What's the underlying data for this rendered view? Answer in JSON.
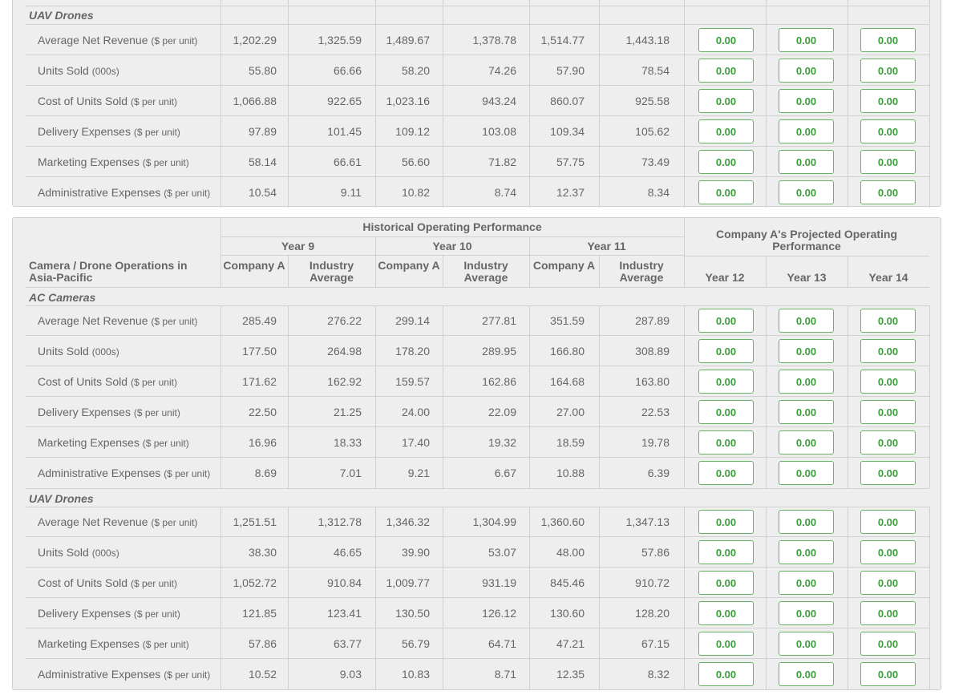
{
  "top_section": {
    "label": "UAV Drones",
    "rows": [
      {
        "label": "Average Net Revenue",
        "unit": "($ per unit)",
        "values": [
          "1,202.29",
          "1,325.59",
          "1,489.67",
          "1,378.78",
          "1,514.77",
          "1,443.18"
        ],
        "projected": [
          "0.00",
          "0.00",
          "0.00"
        ]
      },
      {
        "label": "Units Sold",
        "unit": "(000s)",
        "values": [
          "55.80",
          "66.66",
          "58.20",
          "74.26",
          "57.90",
          "78.54"
        ],
        "projected": [
          "0.00",
          "0.00",
          "0.00"
        ]
      },
      {
        "label": "Cost of Units Sold",
        "unit": "($ per unit)",
        "values": [
          "1,066.88",
          "922.65",
          "1,023.16",
          "943.24",
          "860.07",
          "925.58"
        ],
        "projected": [
          "0.00",
          "0.00",
          "0.00"
        ]
      },
      {
        "label": "Delivery Expenses",
        "unit": "($ per unit)",
        "values": [
          "97.89",
          "101.45",
          "109.12",
          "103.08",
          "109.34",
          "105.62"
        ],
        "projected": [
          "0.00",
          "0.00",
          "0.00"
        ]
      },
      {
        "label": "Marketing Expenses",
        "unit": "($ per unit)",
        "values": [
          "58.14",
          "66.61",
          "56.60",
          "71.82",
          "57.75",
          "73.49"
        ],
        "projected": [
          "0.00",
          "0.00",
          "0.00"
        ]
      },
      {
        "label": "Administrative Expenses",
        "unit": "($ per unit)",
        "values": [
          "10.54",
          "9.11",
          "10.82",
          "8.74",
          "12.37",
          "8.34"
        ],
        "projected": [
          "0.00",
          "0.00",
          "0.00"
        ]
      }
    ]
  },
  "bottom_table": {
    "title": "Camera / Drone Operations in Asia-Pacific",
    "historical_header": "Historical Operating Performance",
    "projected_header": "Company A's Projected Operating Performance",
    "years": [
      "Year 9",
      "Year 10",
      "Year 11"
    ],
    "subheaders": [
      "Company A",
      "Industry Average",
      "Company A",
      "Industry Average",
      "Company A",
      "Industry Average"
    ],
    "projected_years": [
      "Year 12",
      "Year 13",
      "Year 14"
    ],
    "sections": [
      {
        "label": "AC Cameras",
        "rows": [
          {
            "label": "Average Net Revenue",
            "unit": "($ per unit)",
            "values": [
              "285.49",
              "276.22",
              "299.14",
              "277.81",
              "351.59",
              "287.89"
            ],
            "projected": [
              "0.00",
              "0.00",
              "0.00"
            ]
          },
          {
            "label": "Units Sold",
            "unit": "(000s)",
            "values": [
              "177.50",
              "264.98",
              "178.20",
              "289.95",
              "166.80",
              "308.89"
            ],
            "projected": [
              "0.00",
              "0.00",
              "0.00"
            ]
          },
          {
            "label": "Cost of Units Sold",
            "unit": "($ per unit)",
            "values": [
              "171.62",
              "162.92",
              "159.57",
              "162.86",
              "164.68",
              "163.80"
            ],
            "projected": [
              "0.00",
              "0.00",
              "0.00"
            ]
          },
          {
            "label": "Delivery Expenses",
            "unit": "($ per unit)",
            "values": [
              "22.50",
              "21.25",
              "24.00",
              "22.09",
              "27.00",
              "22.53"
            ],
            "projected": [
              "0.00",
              "0.00",
              "0.00"
            ]
          },
          {
            "label": "Marketing Expenses",
            "unit": "($ per unit)",
            "values": [
              "16.96",
              "18.33",
              "17.40",
              "19.32",
              "18.59",
              "19.78"
            ],
            "projected": [
              "0.00",
              "0.00",
              "0.00"
            ]
          },
          {
            "label": "Administrative Expenses",
            "unit": "($ per unit)",
            "values": [
              "8.69",
              "7.01",
              "9.21",
              "6.67",
              "10.88",
              "6.39"
            ],
            "projected": [
              "0.00",
              "0.00",
              "0.00"
            ]
          }
        ]
      },
      {
        "label": "UAV Drones",
        "rows": [
          {
            "label": "Average Net Revenue",
            "unit": "($ per unit)",
            "values": [
              "1,251.51",
              "1,312.78",
              "1,346.32",
              "1,304.99",
              "1,360.60",
              "1,347.13"
            ],
            "projected": [
              "0.00",
              "0.00",
              "0.00"
            ]
          },
          {
            "label": "Units Sold",
            "unit": "(000s)",
            "values": [
              "38.30",
              "46.65",
              "39.90",
              "53.07",
              "48.00",
              "57.86"
            ],
            "projected": [
              "0.00",
              "0.00",
              "0.00"
            ]
          },
          {
            "label": "Cost of Units Sold",
            "unit": "($ per unit)",
            "values": [
              "1,052.72",
              "910.84",
              "1,009.77",
              "931.19",
              "845.46",
              "910.72"
            ],
            "projected": [
              "0.00",
              "0.00",
              "0.00"
            ]
          },
          {
            "label": "Delivery Expenses",
            "unit": "($ per unit)",
            "values": [
              "121.85",
              "123.41",
              "130.50",
              "126.12",
              "130.60",
              "128.20"
            ],
            "projected": [
              "0.00",
              "0.00",
              "0.00"
            ]
          },
          {
            "label": "Marketing Expenses",
            "unit": "($ per unit)",
            "values": [
              "57.86",
              "63.77",
              "56.79",
              "64.71",
              "47.21",
              "67.15"
            ],
            "projected": [
              "0.00",
              "0.00",
              "0.00"
            ]
          },
          {
            "label": "Administrative Expenses",
            "unit": "($ per unit)",
            "values": [
              "10.52",
              "9.03",
              "10.83",
              "8.71",
              "12.35",
              "8.32"
            ],
            "projected": [
              "0.00",
              "0.00",
              "0.00"
            ]
          }
        ]
      }
    ]
  }
}
